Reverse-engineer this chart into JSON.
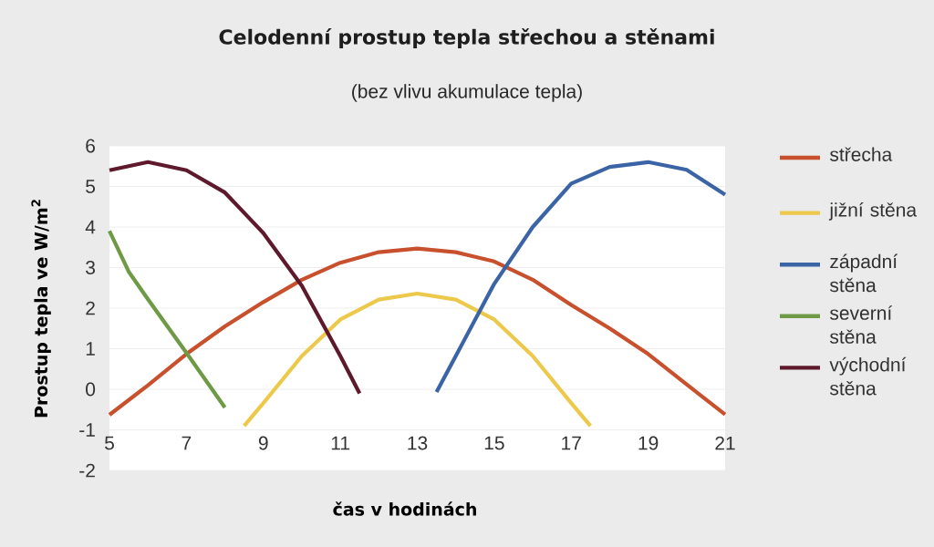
{
  "chart_data": {
    "type": "line",
    "title": "Celodenní prostup tepla střechou a stěnami",
    "subtitle": "(bez vlivu akumulace tepla)",
    "xlabel": "čas v hodinách",
    "ylabel": "Prostup tepla ve W/m$^{2}$",
    "xlim": [
      5,
      21
    ],
    "ylim": [
      -2,
      6
    ],
    "xticks": [
      5,
      7,
      9,
      11,
      13,
      15,
      17,
      19,
      21
    ],
    "yticks": [
      -2,
      -1,
      0,
      1,
      2,
      3,
      4,
      5,
      6
    ],
    "grid": "y",
    "legend": "right",
    "line_style": "solid",
    "series": [
      {
        "name": "střecha",
        "color": "#c8502d",
        "x": [
          5,
          6,
          7,
          8,
          9,
          10,
          11,
          12,
          13,
          14,
          15,
          16,
          17,
          18,
          19,
          20,
          21
        ],
        "values": [
          -0.63,
          0.1,
          0.87,
          1.55,
          2.15,
          2.7,
          3.12,
          3.38,
          3.47,
          3.38,
          3.15,
          2.7,
          2.08,
          1.5,
          0.87,
          0.12,
          -0.62
        ]
      },
      {
        "name": "jižní stěna",
        "color": "#ecc94b",
        "x": [
          8.5,
          9,
          10,
          11,
          12,
          13,
          14,
          15,
          16,
          17,
          17.5
        ],
        "values": [
          -0.9,
          -0.34,
          0.82,
          1.72,
          2.21,
          2.36,
          2.21,
          1.72,
          0.82,
          -0.34,
          -0.9
        ]
      },
      {
        "name": "západní stěna",
        "color": "#3b64a6",
        "x": [
          13.5,
          14,
          15,
          16,
          17,
          18,
          19,
          20,
          21
        ],
        "values": [
          -0.07,
          0.82,
          2.6,
          4.0,
          5.07,
          5.48,
          5.6,
          5.41,
          4.8
        ]
      },
      {
        "name": "severní stěna",
        "color": "#6e9a45",
        "x": [
          5,
          5.5,
          6,
          7,
          8
        ],
        "values": [
          3.9,
          2.9,
          2.22,
          0.9,
          -0.45
        ]
      },
      {
        "name": "východní stěna",
        "color": "#5e1a2c",
        "x": [
          5,
          6,
          7,
          8,
          9,
          10,
          11,
          11.5
        ],
        "values": [
          5.4,
          5.6,
          5.4,
          4.85,
          3.85,
          2.55,
          0.82,
          -0.1
        ]
      }
    ]
  }
}
